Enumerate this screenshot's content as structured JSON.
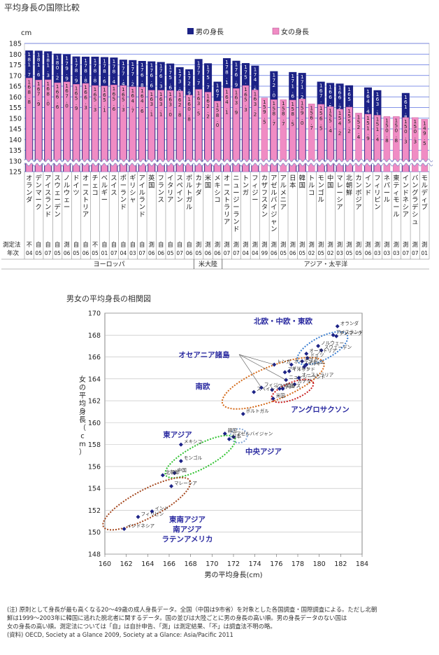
{
  "page_title": "平均身長の国際比較",
  "scatter_title": "男女の平均身長の相関図",
  "notes": [
    "(注) 原則として身長が最も高くなる20～49歳の成人身長データ。全国（中国は9市省）を対象とした各国調査・国際調査による。ただし北朝",
    "鮮は1999～2003年に韓国に逃れた脱北者に関するデータ。国の並びは大陸ごとに男の身長の高い順。男の身長データのない国は",
    "女の身長の高い順。測定法については「自」は自計申告、「測」は測定結果、「不」は調査法不明の略。",
    "(資料) OECD, Society at a Glance 2009, Society at a Glance: Asia/Pacific 2011"
  ],
  "colors": {
    "male": "#1c2286",
    "female": "#f08cc4",
    "grid": "#5b6fe0",
    "bg": "#ffffff"
  },
  "chart_data": [
    {
      "type": "bar",
      "unit_label": "cm",
      "ylim": [
        125,
        185
      ],
      "yticks": [
        125,
        130,
        135,
        140,
        145,
        150,
        155,
        160,
        165,
        170,
        175,
        180,
        185
      ],
      "legend": [
        "男の身長",
        "女の身長"
      ],
      "method_label": "測定法",
      "year_label": "年次",
      "categories": [
        "オランダ",
        "デンマーク",
        "アイスランド",
        "スウェーデン",
        "ノルウェー",
        "ドイツ",
        "オーストリア",
        "チェコ",
        "ベルギー",
        "スイス",
        "ポーランド",
        "ギリシャ",
        "アイルランド",
        "英国",
        "フランス",
        "イタリア",
        "スペイン",
        "ポルトガル",
        "カナダ",
        "米国",
        "メキシコ",
        "オーストラリア",
        "ニュージーランド",
        "トンガ",
        "フィジー",
        "カザフスタン",
        "アゼルバイジャン",
        "アルメニア",
        "日本",
        "韓国",
        "トルコ",
        "モンゴル",
        "中国",
        "マレーシア",
        "北朝鮮",
        "カンボジア",
        "インド",
        "フィリピン",
        "ネパール",
        "東ティモール",
        "インドネシア",
        "バングラデシュ",
        "モルディブ"
      ],
      "series": [
        {
          "name": "男の身長",
          "values": [
            181.7,
            181.6,
            181.3,
            180.2,
            179.9,
            178.9,
            178.8,
            178.8,
            178.6,
            178.4,
            177.4,
            177.2,
            176.8,
            176.6,
            176.3,
            175.6,
            173.9,
            172.9,
            177.7,
            175.7,
            167.1,
            178.1,
            176.9,
            175.8,
            174.6,
            null,
            172.0,
            null,
            171.6,
            171.2,
            null,
            167.1,
            166.5,
            166.2,
            165.4,
            null,
            164.4,
            163.1,
            null,
            null,
            161.8,
            null,
            null
          ]
        },
        {
          "name": "女の身長",
          "values": [
            168.8,
            167.9,
            168.0,
            166.6,
            167.0,
            165.9,
            166.3,
            165.3,
            165.1,
            165.6,
            165.3,
            164.7,
            164.6,
            163.1,
            163.1,
            163.0,
            162.8,
            160.8,
            163.5,
            162.2,
            158.0,
            164.1,
            163.9,
            165.3,
            163.2,
            159.5,
            158.7,
            158.7,
            158.5,
            159.0,
            156.7,
            156.5,
            155.4,
            154.2,
            155.2,
            152.4,
            151.9,
            151.4,
            150.8,
            150.8,
            150.3,
            150.3,
            149.5
          ]
        }
      ],
      "methods": [
        "不",
        "自",
        "自",
        "自",
        "測",
        "自",
        "自",
        "不",
        "自",
        "自",
        "自",
        "自",
        "自",
        "測",
        "自",
        "自",
        "自",
        "自",
        "測",
        "測",
        "測",
        "測",
        "測",
        "測",
        "測",
        "測",
        "測",
        "測",
        "測",
        "測",
        "測",
        "測",
        "測",
        "測",
        "測",
        "測",
        "測",
        "測",
        "測",
        "測",
        "測",
        "測",
        "測"
      ],
      "years": [
        "04",
        "05",
        "07",
        "05",
        "06",
        "05",
        "06",
        "05",
        "01",
        "07",
        "04",
        "03",
        "07",
        "06",
        "06",
        "05",
        "07",
        "06",
        "05",
        "06",
        "06",
        "07",
        "07",
        "04",
        "04",
        "99",
        "06",
        "05",
        "06",
        "05",
        "02",
        "05",
        "02",
        "03",
        "05",
        "05",
        "06",
        "03",
        "03",
        "03",
        "07",
        "07",
        "01"
      ],
      "groups": [
        {
          "label": "ヨーロッパ",
          "from": 0,
          "to": 17
        },
        {
          "label": "米大陸",
          "from": 18,
          "to": 20
        },
        {
          "label": "アジア・太平洋",
          "from": 21,
          "to": 42
        }
      ]
    },
    {
      "type": "scatter",
      "xlabel": "男の平均身長(cm)",
      "ylabel": "女の平均身長（cm）",
      "xlim": [
        160,
        184
      ],
      "ylim": [
        148,
        170
      ],
      "xticks": [
        160,
        162,
        164,
        166,
        168,
        170,
        172,
        174,
        176,
        178,
        180,
        182,
        184
      ],
      "yticks": [
        148,
        150,
        152,
        154,
        156,
        158,
        160,
        162,
        164,
        166,
        168,
        170
      ],
      "points": [
        {
          "label": "アイスランド",
          "x": 181.3,
          "y": 168.0
        },
        {
          "label": "デンマーク",
          "x": 181.6,
          "y": 167.9
        },
        {
          "label": "オランダ",
          "x": 181.7,
          "y": 168.8
        },
        {
          "label": "ドイツ",
          "x": 178.9,
          "y": 165.9
        },
        {
          "label": "スウェーデン",
          "x": 180.2,
          "y": 166.6
        },
        {
          "label": "ノルウェー",
          "x": 179.9,
          "y": 167.0
        },
        {
          "label": "オーストリア",
          "x": 178.8,
          "y": 166.3
        },
        {
          "label": "トンガ",
          "x": 175.8,
          "y": 165.3
        },
        {
          "label": "ギリシャ",
          "x": 177.2,
          "y": 164.7
        },
        {
          "label": "スイス",
          "x": 178.4,
          "y": 165.6
        },
        {
          "label": "ベルギー",
          "x": 178.6,
          "y": 165.1
        },
        {
          "label": "チェコ",
          "x": 178.8,
          "y": 165.3
        },
        {
          "label": "ポーランド",
          "x": 177.4,
          "y": 165.3
        },
        {
          "label": "イタリア",
          "x": 175.6,
          "y": 163.0
        },
        {
          "label": "カナダ",
          "x": 177.7,
          "y": 163.5
        },
        {
          "label": "オーストラリア",
          "x": 178.1,
          "y": 164.1
        },
        {
          "label": "ニュージーランド",
          "x": 176.9,
          "y": 163.9
        },
        {
          "label": "アイルランド",
          "x": 176.8,
          "y": 164.6
        },
        {
          "label": "スペイン",
          "x": 173.9,
          "y": 162.8
        },
        {
          "label": "フランス",
          "x": 176.3,
          "y": 163.1
        },
        {
          "label": "英国",
          "x": 176.6,
          "y": 163.1
        },
        {
          "label": "フィジー",
          "x": 174.6,
          "y": 163.2
        },
        {
          "label": "米国",
          "x": 175.7,
          "y": 162.2
        },
        {
          "label": "ポルトガル",
          "x": 172.9,
          "y": 160.8
        },
        {
          "label": "アゼルバイジャン",
          "x": 172.0,
          "y": 158.7
        },
        {
          "label": "日本",
          "x": 171.6,
          "y": 158.5
        },
        {
          "label": "韓国",
          "x": 171.2,
          "y": 159.0
        },
        {
          "label": "メキシコ",
          "x": 167.1,
          "y": 158.0
        },
        {
          "label": "モンゴル",
          "x": 167.1,
          "y": 156.5
        },
        {
          "label": "中国",
          "x": 166.5,
          "y": 155.4
        },
        {
          "label": "北朝鮮",
          "x": 165.4,
          "y": 155.2
        },
        {
          "label": "マレーシア",
          "x": 166.2,
          "y": 154.2
        },
        {
          "label": "インド",
          "x": 164.4,
          "y": 151.9
        },
        {
          "label": "フィリピン",
          "x": 163.1,
          "y": 151.4
        },
        {
          "label": "インドネシア",
          "x": 161.8,
          "y": 150.3
        }
      ],
      "cluster_labels": [
        "北欧・中欧・東欧",
        "オセアニア諸島",
        "南欧",
        "アングロサクソン",
        "東アジア",
        "中央アジア",
        "東南アジア",
        "南アジア",
        "ラテンアメリカ"
      ]
    }
  ]
}
